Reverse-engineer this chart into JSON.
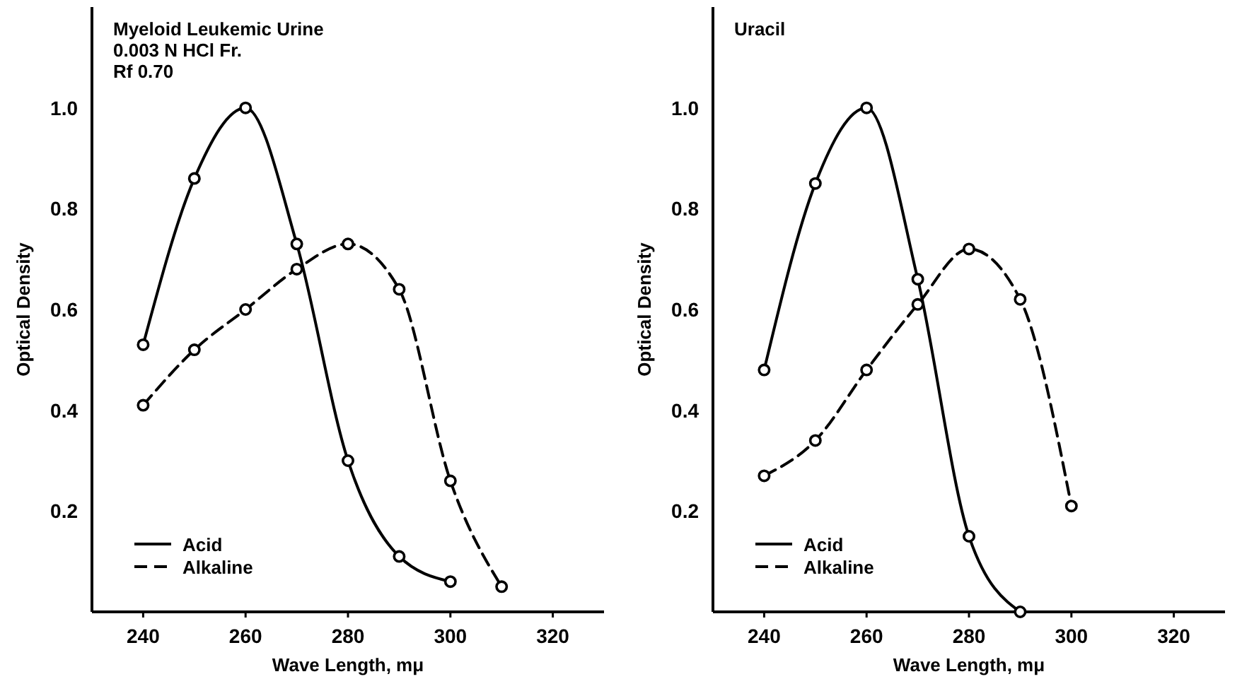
{
  "chart_data": [
    {
      "type": "line",
      "annotations": [
        "Myeloid Leukemic Urine",
        "0.003 N HCl Fr.",
        "Rf 0.70"
      ],
      "xlabel": "Wave Length, mμ",
      "ylabel": "Optical Density",
      "xlim": [
        230,
        330
      ],
      "xticks": [
        240,
        260,
        280,
        300,
        320
      ],
      "ylim": [
        0,
        1.2
      ],
      "yticks": [
        {
          "value": 0.2,
          "label": "0.2"
        },
        {
          "value": 0.4,
          "label": "0.4"
        },
        {
          "value": 0.6,
          "label": "0.6"
        },
        {
          "value": 0.8,
          "label": "0.8"
        },
        {
          "value": 1.0,
          "label": "1.0"
        }
      ],
      "marker": "circle",
      "legend": "bottom left",
      "grid": false,
      "series": [
        {
          "name": "Acid",
          "color": "#000000",
          "line_style": "solid",
          "x": [
            240,
            250,
            260,
            270,
            280,
            290,
            300
          ],
          "values": [
            0.53,
            0.86,
            1.0,
            0.73,
            0.3,
            0.11,
            0.06
          ]
        },
        {
          "name": "Alkaline",
          "color": "#000000",
          "line_style": "dashed",
          "x": [
            240,
            250,
            260,
            270,
            280,
            290,
            300,
            310
          ],
          "values": [
            0.41,
            0.52,
            0.6,
            0.68,
            0.73,
            0.64,
            0.26,
            0.05
          ]
        }
      ]
    },
    {
      "type": "line",
      "annotations": [
        "Uracil"
      ],
      "xlabel": "Wave Length, mμ",
      "ylabel": "Optical Density",
      "xlim": [
        230,
        330
      ],
      "xticks": [
        240,
        260,
        280,
        300,
        320
      ],
      "ylim": [
        0,
        1.2
      ],
      "yticks": [
        {
          "value": 0.2,
          "label": "0.2"
        },
        {
          "value": 0.4,
          "label": "0.4"
        },
        {
          "value": 0.6,
          "label": "0.6"
        },
        {
          "value": 0.8,
          "label": "0.8"
        },
        {
          "value": 1.0,
          "label": "1.0"
        }
      ],
      "marker": "circle",
      "legend": "bottom left",
      "grid": false,
      "series": [
        {
          "name": "Acid",
          "color": "#000000",
          "line_style": "solid",
          "x": [
            240,
            250,
            260,
            270,
            280,
            290
          ],
          "values": [
            0.48,
            0.85,
            1.0,
            0.66,
            0.15,
            0
          ]
        },
        {
          "name": "Alkaline",
          "color": "#000000",
          "line_style": "dashed",
          "x": [
            240,
            250,
            260,
            270,
            280,
            290,
            300
          ],
          "values": [
            0.27,
            0.34,
            0.48,
            0.61,
            0.72,
            0.62,
            0.21
          ]
        }
      ]
    }
  ]
}
